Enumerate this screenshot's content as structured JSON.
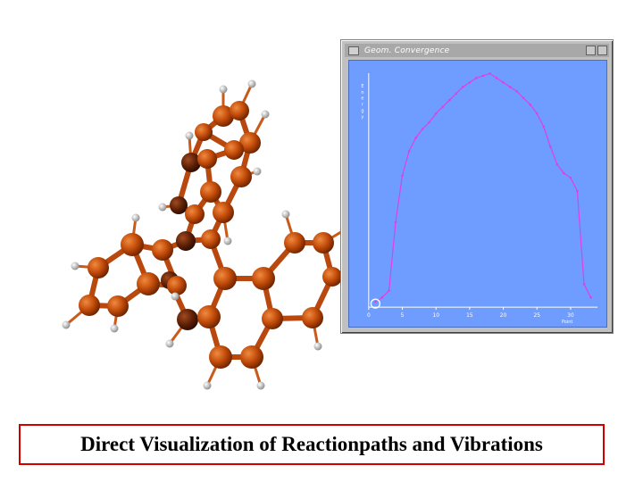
{
  "window": {
    "title": "Geom. Convergence"
  },
  "caption": "Direct Visualization of Reactionpaths and Vibrations",
  "colors": {
    "plot_bg": "#6f9cff",
    "curve": "#e040e0",
    "axis": "#ffffff",
    "caption_border": "#d00000",
    "atom_carbon": "#c84a0a",
    "atom_hydrogen": "#e6e6e6"
  },
  "chart_data": {
    "type": "line",
    "xlabel": "Point",
    "ylabel": "Energy",
    "xlim": [
      0,
      34
    ],
    "xticks": [
      0,
      5,
      10,
      15,
      20,
      25,
      30
    ],
    "grid": false,
    "series": [
      {
        "x": [
          1,
          2,
          3,
          4,
          5,
          6,
          7,
          8,
          9,
          10,
          11,
          12,
          13,
          14,
          15,
          16,
          17,
          18,
          19,
          20,
          21,
          22,
          23,
          24,
          25,
          26,
          27,
          28,
          29,
          30,
          31,
          32,
          33
        ],
        "values": [
          0.0,
          0.02,
          0.05,
          0.36,
          0.57,
          0.68,
          0.74,
          0.78,
          0.81,
          0.85,
          0.88,
          0.91,
          0.94,
          0.97,
          0.99,
          1.01,
          1.02,
          1.03,
          1.01,
          0.99,
          0.97,
          0.95,
          0.92,
          0.89,
          0.85,
          0.79,
          0.7,
          0.62,
          0.58,
          0.56,
          0.5,
          0.08,
          0.02
        ]
      }
    ]
  }
}
